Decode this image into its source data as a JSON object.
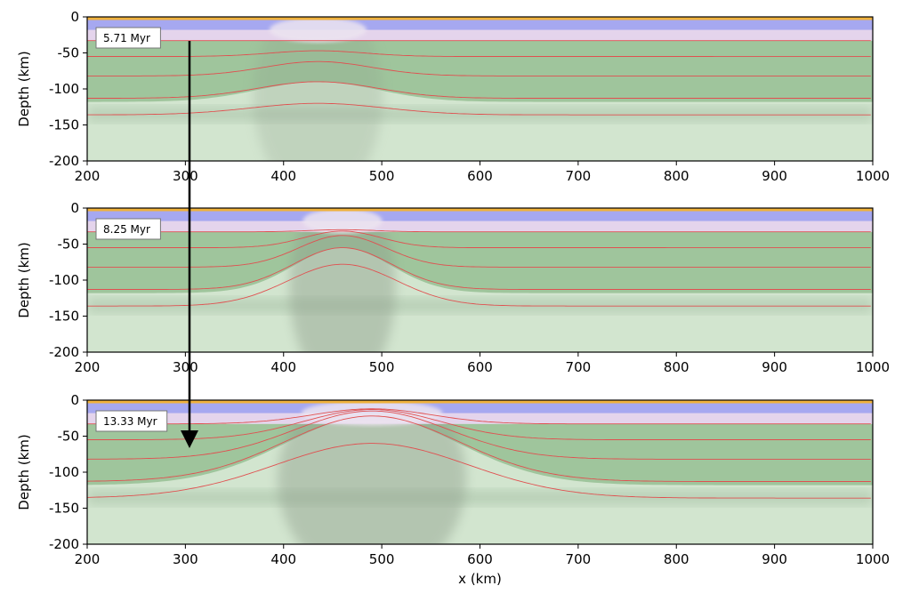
{
  "chart_data": [
    {
      "type": "area",
      "time_label": "5.71 Myr",
      "xlabel": "",
      "ylabel": "Depth (km)",
      "xlim": [
        200,
        1000
      ],
      "ylim": [
        -200,
        0
      ],
      "xticks": [
        "200",
        "300",
        "400",
        "500",
        "600",
        "700",
        "800",
        "900",
        "1000"
      ],
      "yticks": [
        "0",
        "-50",
        "-100",
        "-150",
        "-200"
      ],
      "grid": false,
      "rift_center_x": 435,
      "layers": {
        "upper_crust_base": -18,
        "crust_base": -33,
        "lithosphere_base": -118
      },
      "isotherm_base_depths": [
        -33,
        -55,
        -82,
        -113,
        -136
      ],
      "isotherm_peak_depths": [
        -33,
        -47,
        -62,
        -90,
        -120
      ],
      "uplift_halfwidth_km": 55
    },
    {
      "type": "area",
      "time_label": "8.25 Myr",
      "xlabel": "",
      "ylabel": "Depth (km)",
      "xlim": [
        200,
        1000
      ],
      "ylim": [
        -200,
        0
      ],
      "xticks": [
        "200",
        "300",
        "400",
        "500",
        "600",
        "700",
        "800",
        "900",
        "1000"
      ],
      "yticks": [
        "0",
        "-50",
        "-100",
        "-150",
        "-200"
      ],
      "grid": false,
      "rift_center_x": 460,
      "layers": {
        "upper_crust_base": -18,
        "crust_base": -33,
        "lithosphere_base": -118
      },
      "isotherm_base_depths": [
        -33,
        -55,
        -82,
        -113,
        -136
      ],
      "isotherm_peak_depths": [
        -30,
        -32,
        -38,
        -55,
        -78
      ],
      "uplift_halfwidth_km": 45
    },
    {
      "type": "area",
      "time_label": "13.33 Myr",
      "xlabel": "x (km)",
      "ylabel": "Depth (km)",
      "xlim": [
        200,
        1000
      ],
      "ylim": [
        -200,
        0
      ],
      "xticks": [
        "200",
        "300",
        "400",
        "500",
        "600",
        "700",
        "800",
        "900",
        "1000"
      ],
      "yticks": [
        "0",
        "-50",
        "-100",
        "-150",
        "-200"
      ],
      "grid": false,
      "rift_center_x": 490,
      "layers": {
        "upper_crust_base": -18,
        "crust_base": -33,
        "lithosphere_base": -118
      },
      "isotherm_base_depths": [
        -33,
        -55,
        -82,
        -113,
        -136
      ],
      "isotherm_peak_depths": [
        -12,
        -13,
        -15,
        -22,
        -60
      ],
      "uplift_halfwidth_km": 80
    }
  ],
  "colors": {
    "sediment": "#f0b23c",
    "upper_crust": "#a6a8f0",
    "lower_crust": "#e4d4ec",
    "lithospheric_mantle": "#9fc59c",
    "asthenosphere": "#d2e5cf",
    "isotherm": "#e05050",
    "arrow": "#000000"
  }
}
